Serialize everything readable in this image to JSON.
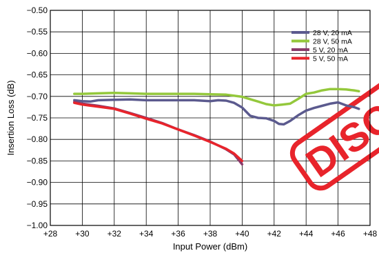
{
  "chart_data": {
    "type": "line",
    "title": "",
    "xlabel": "Input Power (dBm)",
    "ylabel": "Insertion Loss (dB)",
    "xlim": [
      28,
      48
    ],
    "ylim": [
      -1.0,
      -0.5
    ],
    "x_tick_labels": [
      "+28",
      "+30",
      "+32",
      "+34",
      "+36",
      "+38",
      "+40",
      "+42",
      "+44",
      "+46",
      "+48"
    ],
    "x_tick_values": [
      28,
      30,
      32,
      34,
      36,
      38,
      40,
      42,
      44,
      46,
      48
    ],
    "y_tick_labels": [
      "−0.50",
      "−0.55",
      "−0.60",
      "−0.65",
      "−0.70",
      "−0.75",
      "−0.80",
      "−0.85",
      "−0.90",
      "−0.95",
      "−1.00"
    ],
    "y_tick_values": [
      -0.5,
      -0.55,
      -0.6,
      -0.65,
      -0.7,
      -0.75,
      -0.8,
      -0.85,
      -0.9,
      -0.95,
      -1.0
    ],
    "grid": true,
    "legend_position": "top-right",
    "series": [
      {
        "name": "28 V, 20 mA",
        "color": "#5b5a8e",
        "points": [
          [
            29.5,
            -0.709
          ],
          [
            30,
            -0.711
          ],
          [
            30.5,
            -0.712
          ],
          [
            31,
            -0.709
          ],
          [
            32,
            -0.708
          ],
          [
            33,
            -0.707
          ],
          [
            34,
            -0.709
          ],
          [
            35,
            -0.709
          ],
          [
            36,
            -0.709
          ],
          [
            37,
            -0.709
          ],
          [
            38,
            -0.711
          ],
          [
            38.5,
            -0.709
          ],
          [
            39,
            -0.71
          ],
          [
            39.5,
            -0.715
          ],
          [
            40,
            -0.726
          ],
          [
            40.5,
            -0.745
          ],
          [
            41,
            -0.75
          ],
          [
            41.5,
            -0.751
          ],
          [
            42,
            -0.757
          ],
          [
            42.3,
            -0.764
          ],
          [
            42.6,
            -0.765
          ],
          [
            43,
            -0.757
          ],
          [
            43.5,
            -0.744
          ],
          [
            44,
            -0.733
          ],
          [
            44.5,
            -0.727
          ],
          [
            45,
            -0.722
          ],
          [
            45.5,
            -0.717
          ],
          [
            46,
            -0.714
          ],
          [
            46.5,
            -0.721
          ],
          [
            47,
            -0.725
          ],
          [
            47.3,
            -0.729
          ]
        ]
      },
      {
        "name": "28 V, 50 mA",
        "color": "#94c83c",
        "points": [
          [
            29.5,
            -0.694
          ],
          [
            30,
            -0.694
          ],
          [
            31,
            -0.693
          ],
          [
            32,
            -0.692
          ],
          [
            33,
            -0.693
          ],
          [
            34,
            -0.694
          ],
          [
            35,
            -0.694
          ],
          [
            36,
            -0.694
          ],
          [
            37,
            -0.694
          ],
          [
            38,
            -0.695
          ],
          [
            39,
            -0.696
          ],
          [
            40,
            -0.701
          ],
          [
            41,
            -0.712
          ],
          [
            41.5,
            -0.718
          ],
          [
            42,
            -0.721
          ],
          [
            42.5,
            -0.719
          ],
          [
            43,
            -0.717
          ],
          [
            43.5,
            -0.706
          ],
          [
            44,
            -0.694
          ],
          [
            44.5,
            -0.691
          ],
          [
            45,
            -0.686
          ],
          [
            45.5,
            -0.683
          ],
          [
            46,
            -0.683
          ],
          [
            46.5,
            -0.684
          ],
          [
            47,
            -0.686
          ],
          [
            47.3,
            -0.688
          ]
        ]
      },
      {
        "name": "5 V, 20 mA",
        "color": "#8a3a6a",
        "points": [
          [
            29.5,
            -0.713
          ],
          [
            30,
            -0.717
          ],
          [
            31,
            -0.722
          ],
          [
            32,
            -0.728
          ],
          [
            33,
            -0.739
          ],
          [
            34,
            -0.75
          ],
          [
            35,
            -0.762
          ],
          [
            36,
            -0.777
          ],
          [
            37,
            -0.79
          ],
          [
            38,
            -0.805
          ],
          [
            39,
            -0.823
          ],
          [
            39.5,
            -0.835
          ],
          [
            40,
            -0.858
          ]
        ]
      },
      {
        "name": "5 V, 50 mA",
        "color": "#e8242b",
        "points": [
          [
            29.5,
            -0.715
          ],
          [
            30,
            -0.719
          ],
          [
            31,
            -0.724
          ],
          [
            32,
            -0.729
          ],
          [
            33,
            -0.74
          ],
          [
            34,
            -0.752
          ],
          [
            35,
            -0.763
          ],
          [
            36,
            -0.777
          ],
          [
            37,
            -0.791
          ],
          [
            38,
            -0.806
          ],
          [
            39,
            -0.822
          ],
          [
            39.5,
            -0.833
          ],
          [
            40,
            -0.85
          ]
        ]
      }
    ]
  },
  "watermark": {
    "text": "DISCO",
    "color": "#e8242b"
  }
}
